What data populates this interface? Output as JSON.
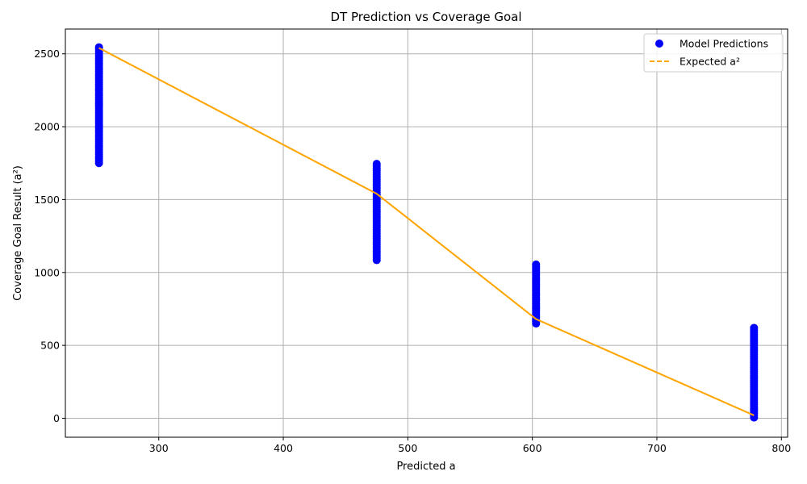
{
  "chart_data": {
    "type": "scatter",
    "title": "DT Prediction vs Coverage Goal",
    "xlabel": "Predicted a",
    "ylabel": "Coverage Goal Result (a²)",
    "xlim": [
      225,
      805
    ],
    "ylim": [
      -130,
      2670
    ],
    "xticks": [
      300,
      400,
      500,
      600,
      700,
      800
    ],
    "yticks": [
      0,
      500,
      1000,
      1500,
      2000,
      2500
    ],
    "grid": true,
    "legend_position": "upper right",
    "series": [
      {
        "name": "Model Predictions",
        "kind": "scatter",
        "color": "#0000ff",
        "groups": [
          {
            "x": 252,
            "y_min": 1750,
            "y_max": 2550
          },
          {
            "x": 475,
            "y_min": 1085,
            "y_max": 1750
          },
          {
            "x": 603,
            "y_min": 650,
            "y_max": 1065
          },
          {
            "x": 778,
            "y_min": 5,
            "y_max": 625
          }
        ]
      },
      {
        "name": "Expected a²",
        "kind": "line",
        "style": "dashed",
        "color": "#ffa500",
        "x": [
          252,
          475,
          603,
          778
        ],
        "y": [
          2540,
          1540,
          680,
          20
        ]
      }
    ]
  }
}
